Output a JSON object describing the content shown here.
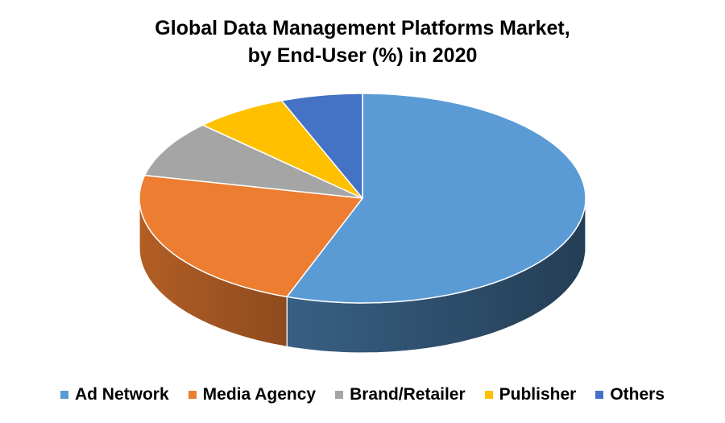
{
  "title_line1": "Global Data Management Platforms Market,",
  "title_line2": "by End-User (%) in 2020",
  "legend": [
    {
      "label": "Ad Network",
      "color": "#5B9BD5"
    },
    {
      "label": "Media Agency",
      "color": "#ED7D31"
    },
    {
      "label": "Brand/Retailer",
      "color": "#A5A5A5"
    },
    {
      "label": "Publisher",
      "color": "#FFC000"
    },
    {
      "label": "Others",
      "color": "#4472C4"
    }
  ],
  "chart_data": {
    "type": "pie",
    "title": "Global Data Management Platforms Market, by End-User (%) in 2020",
    "categories": [
      "Ad Network",
      "Media Agency",
      "Brand/Retailer",
      "Publisher",
      "Others"
    ],
    "values": [
      55.5,
      23.0,
      8.8,
      6.8,
      5.9
    ],
    "colors": [
      "#5B9BD5",
      "#ED7D31",
      "#A5A5A5",
      "#FFC000",
      "#4472C4"
    ],
    "style": "3d",
    "data_labels": false,
    "legend_position": "bottom"
  }
}
